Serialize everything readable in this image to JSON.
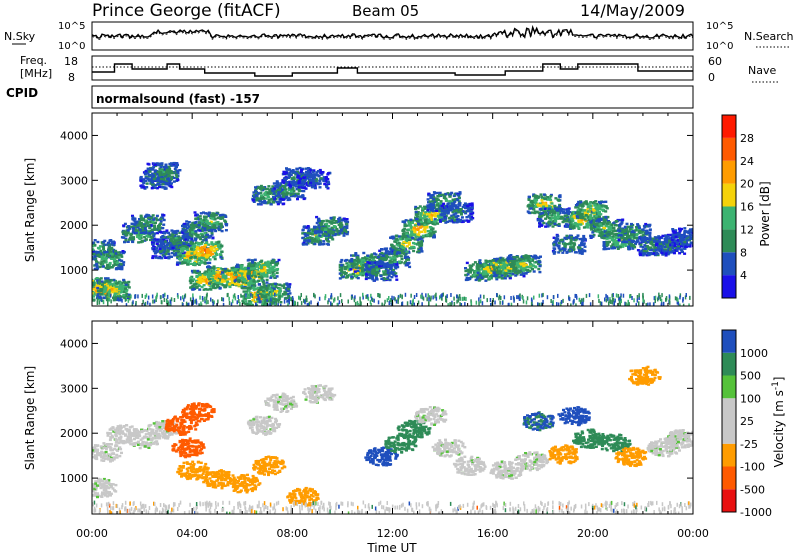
{
  "header": {
    "station": "Prince George (fitACF)",
    "beam": "Beam 05",
    "date": "14/May/2009"
  },
  "strips": {
    "nsky_label": "N.Sky",
    "nsky_ticks": [
      "10^5",
      "10^0"
    ],
    "nsearch_label": "N.Search",
    "nsearch_ticks": [
      "10^5",
      "10^0"
    ],
    "freq_label_1": "Freq.",
    "freq_label_2": "[MHz]",
    "freq_ticks": [
      "18",
      "8"
    ],
    "nave_label": "Nave",
    "nave_ticks": [
      "60",
      "0"
    ],
    "cpid_label": "CPID",
    "cpid_value": "normalsound (fast) -157"
  },
  "colors": {
    "power": [
      "#1a10e8",
      "#1f4fbd",
      "#2e8b57",
      "#3cb371",
      "#f5d20a",
      "#ff9c00",
      "#ff5a00",
      "#ff1a00"
    ],
    "velocity": [
      "#e81010",
      "#ff5a00",
      "#ff9c00",
      "#c8c8c8",
      "#c8c8c8",
      "#55c23a",
      "#2e8b57",
      "#1f4fbd"
    ]
  },
  "chart_data": [
    {
      "type": "heatmap",
      "quantity": "power",
      "ylabel": "Slant Range [km]",
      "ylim": [
        200,
        4500
      ],
      "xlim": [
        0,
        24
      ],
      "x_ticks": [
        "00:00",
        "04:00",
        "08:00",
        "12:00",
        "16:00",
        "20:00",
        "00:00"
      ],
      "y_ticks": [
        "1000",
        "2000",
        "3000",
        "4000"
      ],
      "colorbar_label": "Power [dB]",
      "colorbar_ticks": [
        "28",
        "24",
        "20",
        "16",
        "12",
        "8",
        "4"
      ],
      "colorbar_range": [
        0,
        32
      ],
      "regions": [
        {
          "t": 0.0,
          "r": 650,
          "v": 24
        },
        {
          "t": 0.4,
          "r": 550,
          "v": 26
        },
        {
          "t": 0.8,
          "r": 600,
          "v": 20
        },
        {
          "t": 0.2,
          "r": 1500,
          "v": 14
        },
        {
          "t": 0.6,
          "r": 1250,
          "v": 16
        },
        {
          "t": 1.8,
          "r": 1850,
          "v": 16
        },
        {
          "t": 2.2,
          "r": 2050,
          "v": 14
        },
        {
          "t": 2.5,
          "r": 3050,
          "v": 10
        },
        {
          "t": 2.8,
          "r": 3200,
          "v": 12
        },
        {
          "t": 3.0,
          "r": 1500,
          "v": 10
        },
        {
          "t": 3.3,
          "r": 1700,
          "v": 12
        },
        {
          "t": 4.0,
          "r": 1350,
          "v": 24
        },
        {
          "t": 4.5,
          "r": 1450,
          "v": 26
        },
        {
          "t": 4.2,
          "r": 1900,
          "v": 14
        },
        {
          "t": 4.7,
          "r": 2100,
          "v": 16
        },
        {
          "t": 4.5,
          "r": 800,
          "v": 22
        },
        {
          "t": 5.2,
          "r": 900,
          "v": 26
        },
        {
          "t": 5.8,
          "r": 850,
          "v": 28
        },
        {
          "t": 6.3,
          "r": 950,
          "v": 24
        },
        {
          "t": 6.8,
          "r": 1050,
          "v": 20
        },
        {
          "t": 6.6,
          "r": 450,
          "v": 24
        },
        {
          "t": 7.2,
          "r": 520,
          "v": 18
        },
        {
          "t": 7.0,
          "r": 2700,
          "v": 14
        },
        {
          "t": 7.8,
          "r": 2800,
          "v": 12
        },
        {
          "t": 8.2,
          "r": 3100,
          "v": 10
        },
        {
          "t": 8.8,
          "r": 3050,
          "v": 8
        },
        {
          "t": 9.0,
          "r": 1800,
          "v": 16
        },
        {
          "t": 9.5,
          "r": 2000,
          "v": 14
        },
        {
          "t": 10.5,
          "r": 1050,
          "v": 20
        },
        {
          "t": 10.9,
          "r": 1200,
          "v": 16
        },
        {
          "t": 11.5,
          "r": 1000,
          "v": 12
        },
        {
          "t": 12.0,
          "r": 1300,
          "v": 14
        },
        {
          "t": 12.5,
          "r": 1600,
          "v": 18
        },
        {
          "t": 13.0,
          "r": 1950,
          "v": 22
        },
        {
          "t": 13.5,
          "r": 2250,
          "v": 20
        },
        {
          "t": 14.0,
          "r": 2550,
          "v": 14
        },
        {
          "t": 14.5,
          "r": 2300,
          "v": 10
        },
        {
          "t": 15.5,
          "r": 1000,
          "v": 16
        },
        {
          "t": 16.0,
          "r": 1050,
          "v": 22
        },
        {
          "t": 16.6,
          "r": 1100,
          "v": 20
        },
        {
          "t": 17.2,
          "r": 1150,
          "v": 18
        },
        {
          "t": 18.0,
          "r": 2500,
          "v": 20
        },
        {
          "t": 18.4,
          "r": 2200,
          "v": 14
        },
        {
          "t": 19.0,
          "r": 1600,
          "v": 12
        },
        {
          "t": 19.5,
          "r": 2150,
          "v": 22
        },
        {
          "t": 19.9,
          "r": 2350,
          "v": 20
        },
        {
          "t": 20.5,
          "r": 1950,
          "v": 16
        },
        {
          "t": 21.0,
          "r": 1700,
          "v": 18
        },
        {
          "t": 21.6,
          "r": 1850,
          "v": 14
        },
        {
          "t": 22.4,
          "r": 1550,
          "v": 12
        },
        {
          "t": 23.0,
          "r": 1600,
          "v": 10
        },
        {
          "t": 23.7,
          "r": 1750,
          "v": 8
        }
      ]
    },
    {
      "type": "heatmap",
      "quantity": "velocity",
      "ylabel": "Slant Range [km]",
      "xlabel": "Time UT",
      "ylim": [
        200,
        4500
      ],
      "xlim": [
        0,
        24
      ],
      "x_ticks": [
        "00:00",
        "04:00",
        "08:00",
        "12:00",
        "16:00",
        "20:00",
        "00:00"
      ],
      "y_ticks": [
        "1000",
        "2000",
        "3000",
        "4000"
      ],
      "colorbar_label": "Velocity [m s^-1]",
      "colorbar_ticks": [
        "1000",
        "500",
        "100",
        "25",
        "-25",
        "-100",
        "-500",
        "-1000"
      ],
      "colorbar_classes": [
        -1000,
        -500,
        -100,
        -25,
        25,
        100,
        500,
        1000
      ],
      "regions": [
        {
          "t": 0.3,
          "r": 800,
          "v": 0
        },
        {
          "t": 0.5,
          "r": 1600,
          "v": 0
        },
        {
          "t": 1.2,
          "r": 2000,
          "v": 0
        },
        {
          "t": 2.0,
          "r": 1900,
          "v": 0
        },
        {
          "t": 2.8,
          "r": 2100,
          "v": 0
        },
        {
          "t": 3.5,
          "r": 2200,
          "v": -600
        },
        {
          "t": 3.8,
          "r": 1700,
          "v": -900
        },
        {
          "t": 4.2,
          "r": 2500,
          "v": -800
        },
        {
          "t": 4.0,
          "r": 1200,
          "v": -300
        },
        {
          "t": 5.0,
          "r": 1000,
          "v": -300
        },
        {
          "t": 6.0,
          "r": 900,
          "v": -200
        },
        {
          "t": 7.0,
          "r": 1300,
          "v": -150
        },
        {
          "t": 6.8,
          "r": 2200,
          "v": 0
        },
        {
          "t": 7.5,
          "r": 2700,
          "v": 0
        },
        {
          "t": 8.4,
          "r": 600,
          "v": -200
        },
        {
          "t": 9.0,
          "r": 2900,
          "v": 0
        },
        {
          "t": 11.5,
          "r": 1500,
          "v": 700
        },
        {
          "t": 12.3,
          "r": 1800,
          "v": 400
        },
        {
          "t": 12.8,
          "r": 2100,
          "v": 150
        },
        {
          "t": 13.5,
          "r": 2400,
          "v": 0
        },
        {
          "t": 14.2,
          "r": 1700,
          "v": 0
        },
        {
          "t": 15.0,
          "r": 1300,
          "v": 0
        },
        {
          "t": 16.5,
          "r": 1200,
          "v": 0
        },
        {
          "t": 17.5,
          "r": 1400,
          "v": 0
        },
        {
          "t": 17.8,
          "r": 2300,
          "v": 500
        },
        {
          "t": 18.8,
          "r": 1550,
          "v": -200
        },
        {
          "t": 19.2,
          "r": 2400,
          "v": 900
        },
        {
          "t": 19.8,
          "r": 1900,
          "v": 300
        },
        {
          "t": 20.8,
          "r": 1800,
          "v": 150
        },
        {
          "t": 21.5,
          "r": 1500,
          "v": -200
        },
        {
          "t": 22.0,
          "r": 3300,
          "v": -400
        },
        {
          "t": 22.8,
          "r": 1700,
          "v": 0
        },
        {
          "t": 23.5,
          "r": 1900,
          "v": 0
        }
      ]
    }
  ]
}
